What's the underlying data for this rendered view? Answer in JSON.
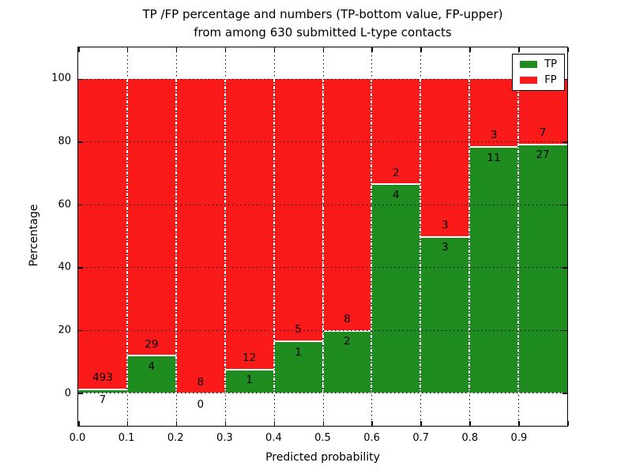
{
  "figure": {
    "title_line1": "TP /FP percentage and numbers (TP-bottom value, FP-upper)",
    "title_line2": "from among 630 submitted L-type contacts"
  },
  "chart_data": {
    "type": "bar",
    "stacked": true,
    "normalized": "each bin stacked to 100%",
    "title": "TP /FP percentage and numbers (TP-bottom value, FP-upper) from among 630 submitted L-type contacts",
    "xlabel": "Predicted probability",
    "ylabel": "Percentage",
    "xlim": [
      0.0,
      1.0
    ],
    "ylim": [
      -10.5,
      110
    ],
    "grid": true,
    "bin_width": 0.1,
    "bin_starts": [
      0.0,
      0.1,
      0.2,
      0.3,
      0.4,
      0.5,
      0.6,
      0.7,
      0.8,
      0.9
    ],
    "xtick_labels": [
      "0.0",
      "0.1",
      "0.2",
      "0.3",
      "0.4",
      "0.5",
      "0.6",
      "0.7",
      "0.8",
      "0.9"
    ],
    "ytick_labels": [
      "0",
      "20",
      "40",
      "60",
      "80",
      "100"
    ],
    "ytick_values": [
      0,
      20,
      40,
      60,
      80,
      100
    ],
    "series": [
      {
        "name": "TP",
        "color": "#1e8c1e",
        "counts": [
          7,
          4,
          0,
          1,
          1,
          2,
          4,
          3,
          11,
          27
        ]
      },
      {
        "name": "FP",
        "color": "#fa1a1a",
        "counts": [
          493,
          29,
          8,
          12,
          5,
          8,
          2,
          3,
          3,
          7
        ]
      }
    ],
    "tp_percent_of_bin": [
      1.4,
      12.12,
      0.0,
      7.69,
      16.67,
      20.0,
      66.67,
      50.0,
      78.57,
      79.41
    ],
    "legend": {
      "position": "upper right",
      "entries": [
        {
          "label": "TP",
          "color": "#1e8c1e"
        },
        {
          "label": "FP",
          "color": "#fa1a1a"
        }
      ]
    }
  }
}
